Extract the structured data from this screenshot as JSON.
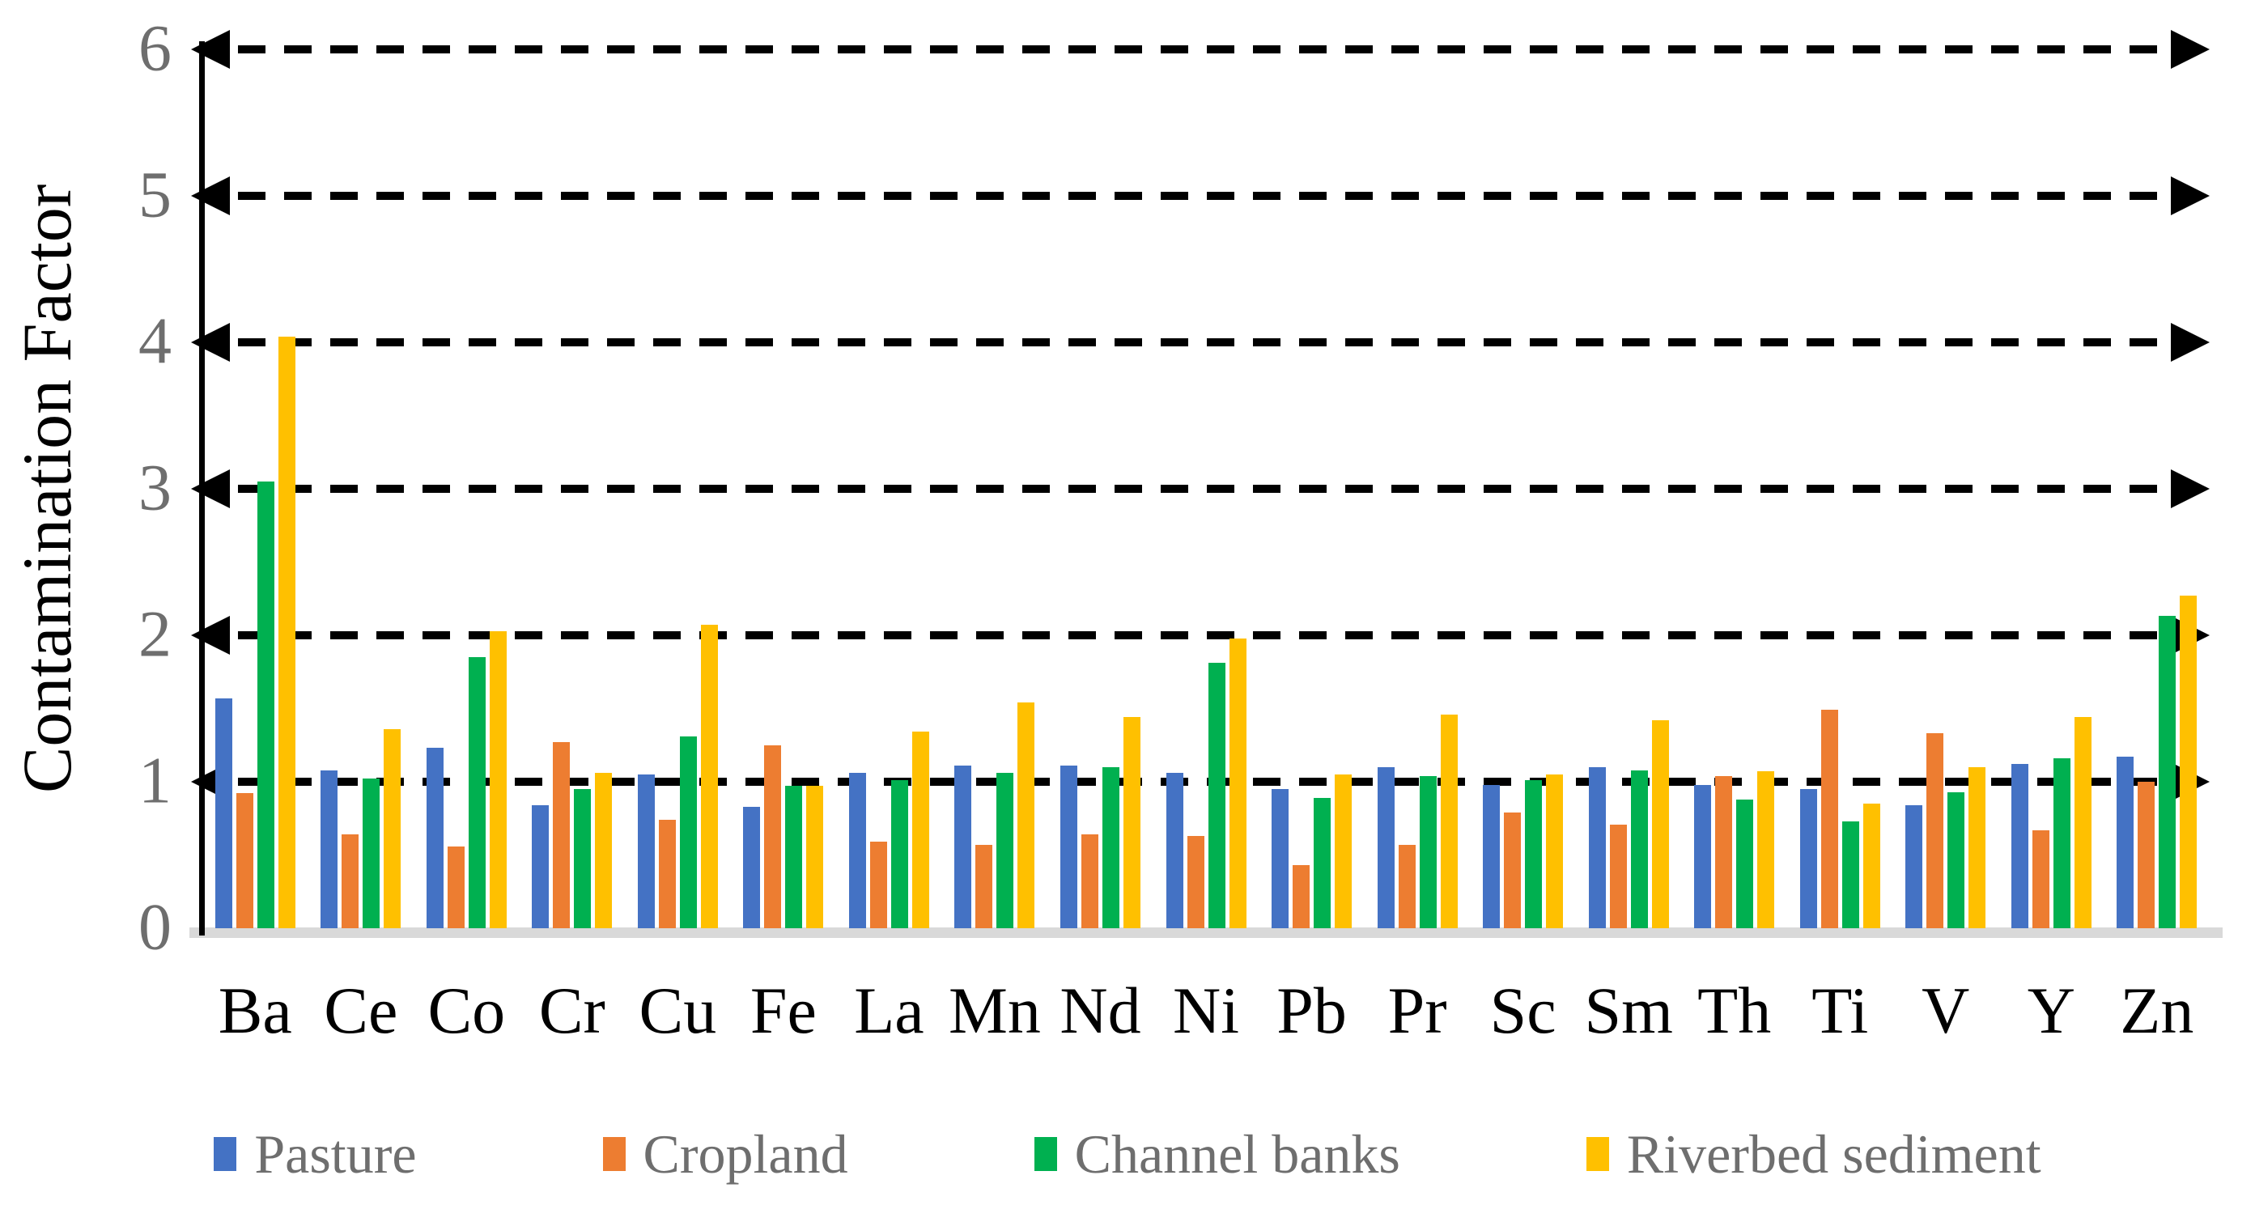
{
  "chart_data": {
    "type": "bar",
    "title": "",
    "xlabel": "",
    "ylabel": "Contamination Factor",
    "ylim": [
      0,
      6
    ],
    "yticks": [
      0,
      1,
      2,
      3,
      4,
      5,
      6
    ],
    "ytick_labels": [
      "0",
      "1",
      "2",
      "3",
      "4",
      "5",
      "6"
    ],
    "grid": "horizontal dashed black lines at each integer with arrowheads on both ends",
    "legend_position": "bottom-center",
    "categories": [
      "Ba",
      "Ce",
      "Co",
      "Cr",
      "Cu",
      "Fe",
      "La",
      "Mn",
      "Nd",
      "Ni",
      "Pb",
      "Pr",
      "Sc",
      "Sm",
      "Th",
      "Ti",
      "V",
      "Y",
      "Zn"
    ],
    "series": [
      {
        "name": "Pasture",
        "color": "#4472C4",
        "values": [
          1.57,
          1.08,
          1.23,
          0.84,
          1.05,
          0.83,
          1.06,
          1.11,
          1.11,
          1.06,
          0.95,
          1.1,
          0.98,
          1.1,
          0.98,
          0.95,
          0.84,
          1.12,
          1.17
        ]
      },
      {
        "name": "Cropland",
        "color": "#ED7D31",
        "values": [
          0.92,
          0.64,
          0.56,
          1.27,
          0.74,
          1.25,
          0.59,
          0.57,
          0.64,
          0.63,
          0.43,
          0.57,
          0.79,
          0.71,
          1.04,
          1.49,
          1.33,
          0.67,
          1.0
        ]
      },
      {
        "name": "Channel banks",
        "color": "#00B050",
        "values": [
          3.05,
          1.02,
          1.85,
          0.95,
          1.31,
          0.97,
          1.01,
          1.06,
          1.1,
          1.81,
          0.89,
          1.04,
          1.01,
          1.08,
          0.88,
          0.73,
          0.93,
          1.16,
          2.13
        ]
      },
      {
        "name": "Riverbed sediment",
        "color": "#FFC000",
        "values": [
          4.04,
          1.36,
          2.03,
          1.06,
          2.07,
          0.97,
          1.34,
          1.54,
          1.44,
          1.98,
          1.05,
          1.46,
          1.05,
          1.42,
          1.07,
          0.85,
          1.1,
          1.44,
          2.27
        ]
      }
    ],
    "style_colors": {
      "gridline": "#000000",
      "axis_line": "#000000",
      "baseline_strip": "#D9D9D9",
      "tick_text": "#6E6E6E",
      "legend_text": "#6E6E6E",
      "category_text": "#000000",
      "axis_title_text": "#000000",
      "background": "#FFFFFF"
    }
  }
}
